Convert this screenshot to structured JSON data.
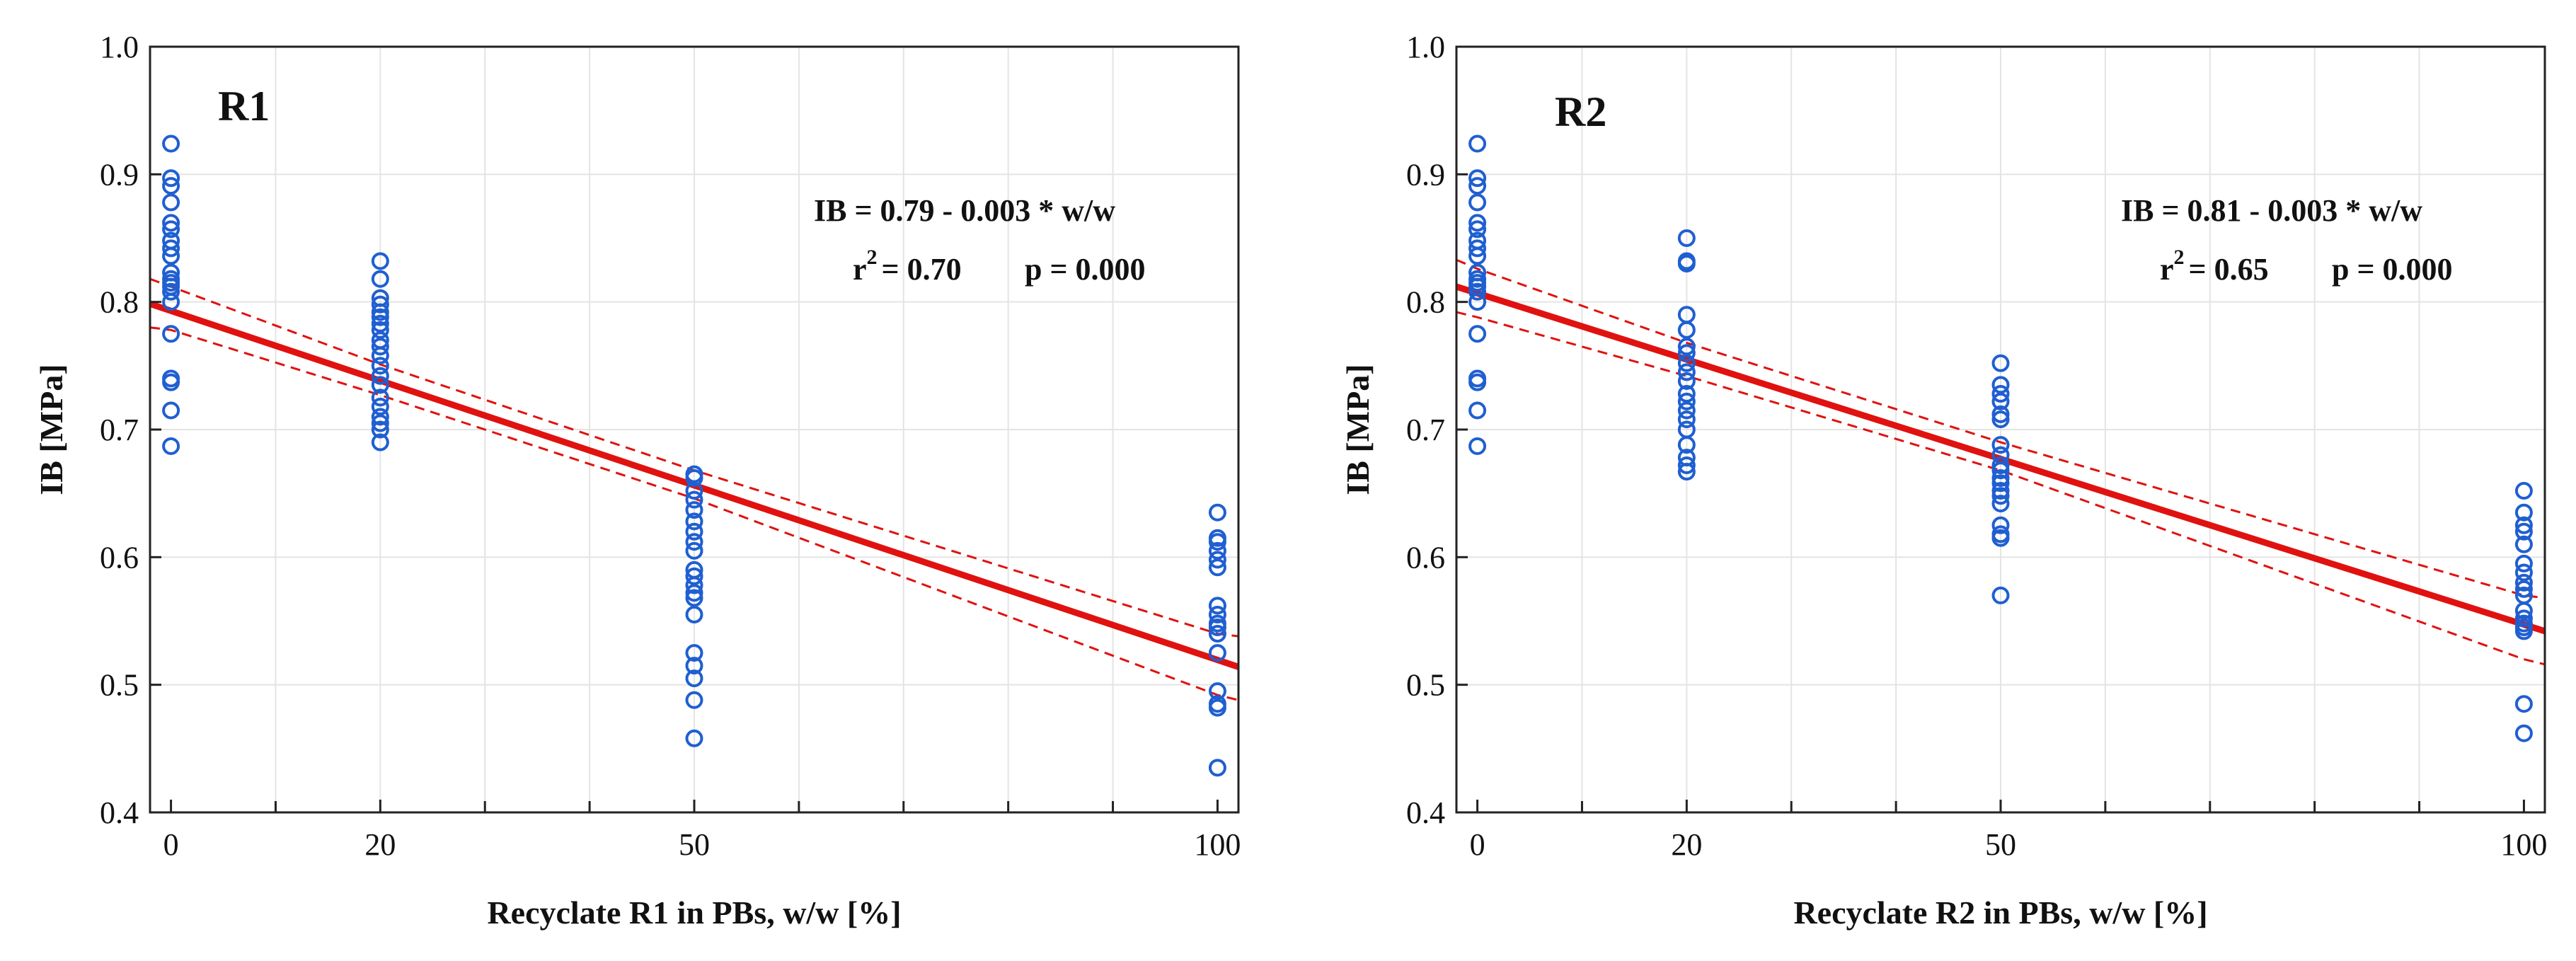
{
  "chart_data": [
    {
      "type": "scatter",
      "panel_label": "R1",
      "xlabel": "Recyclate R1 in PBs, w/w  [%]",
      "ylabel": "IB  [MPa]",
      "xlim": [
        -2,
        102
      ],
      "ylim": [
        0.4,
        1.0
      ],
      "x_ticks": [
        0,
        20,
        50,
        100
      ],
      "y_ticks": [
        "0.4",
        "0.5",
        "0.6",
        "0.7",
        "0.8",
        "0.9",
        "1.0"
      ],
      "grid": true,
      "equation_text": "IB = 0.79 - 0.003 * w/w",
      "r2_label": "r",
      "r2_superscript": "2",
      "r2_value": "= 0.70",
      "p_text": "p = 0.000",
      "fit": {
        "x": [
          -2,
          102
        ],
        "y": [
          0.7985,
          0.514
        ]
      },
      "ci_upper": {
        "x": [
          -2,
          0,
          20,
          50,
          100,
          102
        ],
        "y": [
          0.818,
          0.812,
          0.751,
          0.668,
          0.54,
          0.538
        ]
      },
      "ci_lower": {
        "x": [
          -2,
          0,
          20,
          50,
          100,
          102
        ],
        "y": [
          0.78,
          0.778,
          0.727,
          0.646,
          0.492,
          0.488
        ]
      },
      "points": [
        {
          "x": 0,
          "y": [
            0.924,
            0.897,
            0.891,
            0.878,
            0.862,
            0.857,
            0.848,
            0.842,
            0.836,
            0.823,
            0.818,
            0.815,
            0.812,
            0.808,
            0.8,
            0.775,
            0.74,
            0.737,
            0.715,
            0.687
          ]
        },
        {
          "x": 20,
          "y": [
            0.832,
            0.818,
            0.803,
            0.798,
            0.792,
            0.788,
            0.783,
            0.778,
            0.77,
            0.765,
            0.758,
            0.75,
            0.742,
            0.735,
            0.725,
            0.718,
            0.71,
            0.705,
            0.7,
            0.69
          ]
        },
        {
          "x": 50,
          "y": [
            0.665,
            0.662,
            0.652,
            0.645,
            0.637,
            0.628,
            0.62,
            0.612,
            0.605,
            0.59,
            0.585,
            0.578,
            0.572,
            0.568,
            0.555,
            0.525,
            0.515,
            0.505,
            0.488,
            0.458
          ]
        },
        {
          "x": 100,
          "y": [
            0.635,
            0.615,
            0.612,
            0.605,
            0.598,
            0.592,
            0.562,
            0.555,
            0.548,
            0.545,
            0.54,
            0.525,
            0.495,
            0.485,
            0.482,
            0.435
          ]
        }
      ]
    },
    {
      "type": "scatter",
      "panel_label": "R2",
      "xlabel": "Recyclate R2 in PBs, w/w  [%]",
      "ylabel": "IB  [MPa]",
      "xlim": [
        -2,
        102
      ],
      "ylim": [
        0.4,
        1.0
      ],
      "x_ticks": [
        0,
        20,
        50,
        100
      ],
      "y_ticks": [
        "0.4",
        "0.5",
        "0.6",
        "0.7",
        "0.8",
        "0.9",
        "1.0"
      ],
      "grid": true,
      "equation_text": "IB = 0.81 - 0.003 * w/w",
      "r2_label": "r",
      "r2_superscript": "2",
      "r2_value": "= 0.65",
      "p_text": "p = 0.000",
      "fit": {
        "x": [
          -2,
          102
        ],
        "y": [
          0.812,
          0.542
        ]
      },
      "ci_upper": {
        "x": [
          -2,
          0,
          20,
          50,
          100,
          102
        ],
        "y": [
          0.833,
          0.826,
          0.768,
          0.69,
          0.57,
          0.568
        ]
      },
      "ci_lower": {
        "x": [
          -2,
          0,
          20,
          50,
          100,
          102
        ],
        "y": [
          0.792,
          0.788,
          0.742,
          0.668,
          0.52,
          0.516
        ]
      },
      "points": [
        {
          "x": 0,
          "y": [
            0.924,
            0.897,
            0.891,
            0.878,
            0.862,
            0.857,
            0.848,
            0.842,
            0.836,
            0.823,
            0.818,
            0.815,
            0.812,
            0.808,
            0.8,
            0.775,
            0.74,
            0.737,
            0.715,
            0.687
          ]
        },
        {
          "x": 20,
          "y": [
            0.85,
            0.832,
            0.83,
            0.79,
            0.778,
            0.765,
            0.76,
            0.752,
            0.745,
            0.738,
            0.728,
            0.722,
            0.715,
            0.708,
            0.7,
            0.688,
            0.678,
            0.672,
            0.667
          ]
        },
        {
          "x": 50,
          "y": [
            0.752,
            0.735,
            0.728,
            0.722,
            0.712,
            0.708,
            0.688,
            0.68,
            0.672,
            0.668,
            0.662,
            0.658,
            0.652,
            0.648,
            0.642,
            0.625,
            0.618,
            0.615,
            0.57
          ]
        },
        {
          "x": 100,
          "y": [
            0.652,
            0.635,
            0.625,
            0.62,
            0.61,
            0.595,
            0.588,
            0.58,
            0.575,
            0.57,
            0.558,
            0.552,
            0.548,
            0.545,
            0.542,
            0.485,
            0.462
          ]
        }
      ]
    }
  ]
}
